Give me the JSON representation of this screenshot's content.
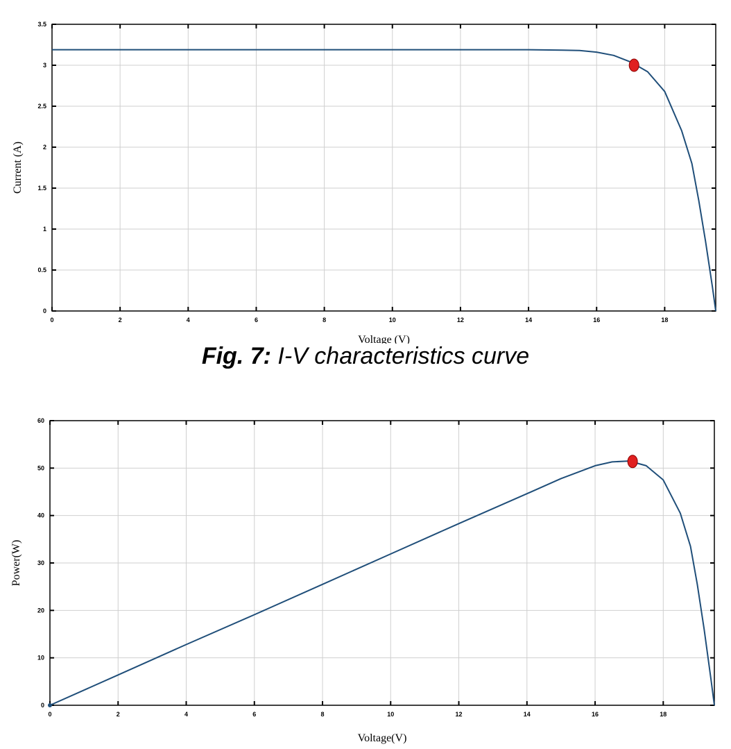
{
  "caption": {
    "label": "Fig. 7:",
    "text": "I-V characteristics curve"
  },
  "chart_data": [
    {
      "type": "line",
      "xlabel": "Voltage (V)",
      "ylabel": "Current (A)",
      "xlim": [
        0,
        19.5
      ],
      "ylim": [
        0,
        3.5
      ],
      "xticks": [
        "0",
        "2",
        "4",
        "6",
        "8",
        "10",
        "12",
        "14",
        "16",
        "18"
      ],
      "yticks": [
        "0",
        "0.5",
        "1",
        "1.5",
        "2",
        "2.5",
        "3",
        "3.5"
      ],
      "grid": true,
      "line_color": "#1f4e79",
      "marker_color": "#e02020",
      "series": [
        {
          "x": [
            0,
            2,
            4,
            6,
            8,
            10,
            12,
            14,
            15,
            15.5,
            16,
            16.5,
            17,
            17.5,
            18,
            18.5,
            18.8,
            19,
            19.2,
            19.4,
            19.5
          ],
          "y": [
            3.19,
            3.19,
            3.19,
            3.19,
            3.19,
            3.19,
            3.19,
            3.19,
            3.185,
            3.18,
            3.16,
            3.12,
            3.04,
            2.92,
            2.68,
            2.2,
            1.8,
            1.35,
            0.85,
            0.3,
            0
          ]
        }
      ],
      "mpp": {
        "x": 17.1,
        "y": 3.0
      }
    },
    {
      "type": "line",
      "xlabel": "Voltage(V)",
      "ylabel": "Power(W)",
      "xlim": [
        0,
        19.5
      ],
      "ylim": [
        0,
        60
      ],
      "xticks": [
        "0",
        "2",
        "4",
        "6",
        "8",
        "10",
        "12",
        "14",
        "16",
        "18"
      ],
      "yticks": [
        "0",
        "10",
        "20",
        "30",
        "40",
        "50",
        "60"
      ],
      "grid": true,
      "line_color": "#1f4e79",
      "marker_color": "#e02020",
      "series": [
        {
          "x": [
            0,
            2,
            4,
            6,
            8,
            10,
            12,
            14,
            15,
            16,
            16.5,
            17,
            17.5,
            18,
            18.5,
            18.8,
            19,
            19.2,
            19.4,
            19.5
          ],
          "y": [
            0,
            6.4,
            12.8,
            19.1,
            25.5,
            31.9,
            38.3,
            44.6,
            47.8,
            50.5,
            51.3,
            51.5,
            50.5,
            47.5,
            40.5,
            33.5,
            25.5,
            16,
            5.5,
            0
          ]
        }
      ],
      "mpp": {
        "x": 17.1,
        "y": 51.4
      }
    }
  ]
}
